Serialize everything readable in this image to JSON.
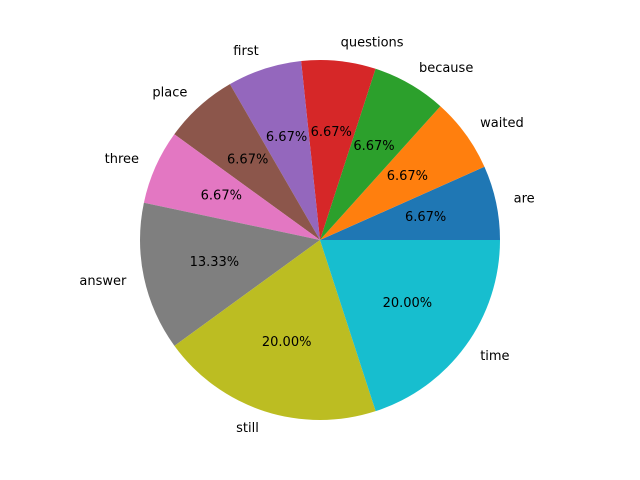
{
  "chart_data": {
    "type": "pie",
    "title": "",
    "categories": [
      "are",
      "waited",
      "because",
      "questions",
      "first",
      "place",
      "three",
      "answer",
      "still",
      "time"
    ],
    "values": [
      6.67,
      6.67,
      6.67,
      6.67,
      6.67,
      6.67,
      6.67,
      13.33,
      20.0,
      20.0
    ],
    "percent_labels": [
      "6.67%",
      "6.67%",
      "6.67%",
      "6.67%",
      "6.67%",
      "6.67%",
      "6.67%",
      "13.33%",
      "20.00%",
      "20.00%"
    ],
    "colors": [
      "#1f77b4",
      "#ff7f0e",
      "#2ca02c",
      "#d62728",
      "#9467bd",
      "#8c564b",
      "#e377c2",
      "#7f7f7f",
      "#bcbd22",
      "#17becf"
    ],
    "start_angle_deg": 0,
    "direction": "counterclockwise",
    "legend": "none"
  }
}
